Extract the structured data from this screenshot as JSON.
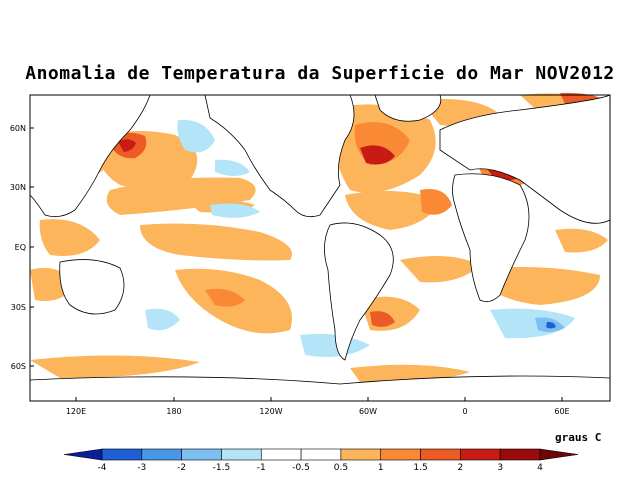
{
  "title": "Anomalia de Temperatura da Superficie do Mar NOV2012",
  "map": {
    "lat_ticks": [
      "60N",
      "30N",
      "EQ",
      "30S",
      "60S"
    ],
    "lon_ticks": [
      "120E",
      "180",
      "120W",
      "60W",
      "0",
      "60E"
    ]
  },
  "colorbar": {
    "units": "graus C",
    "levels": [
      "-4",
      "-3",
      "-2",
      "-1.5",
      "-1",
      "-0.5",
      "0.5",
      "1",
      "1.5",
      "2",
      "3",
      "4"
    ],
    "colors": [
      "#0a1e9c",
      "#1f5fd6",
      "#4a97e8",
      "#7cc0f2",
      "#b3e4f8",
      "#ffffff",
      "#ffffff",
      "#fcb55a",
      "#f98935",
      "#ec5a26",
      "#c81b14",
      "#9a0b0b",
      "#6e0505"
    ]
  },
  "palette": {
    "warm1": "#fcb55a",
    "warm2": "#f98935",
    "warm3": "#ec5a26",
    "warm4": "#c81b14",
    "cool1": "#b3e4f8",
    "cool2": "#7cc0f2",
    "cool3": "#4a97e8",
    "cool4": "#1f5fd6"
  }
}
